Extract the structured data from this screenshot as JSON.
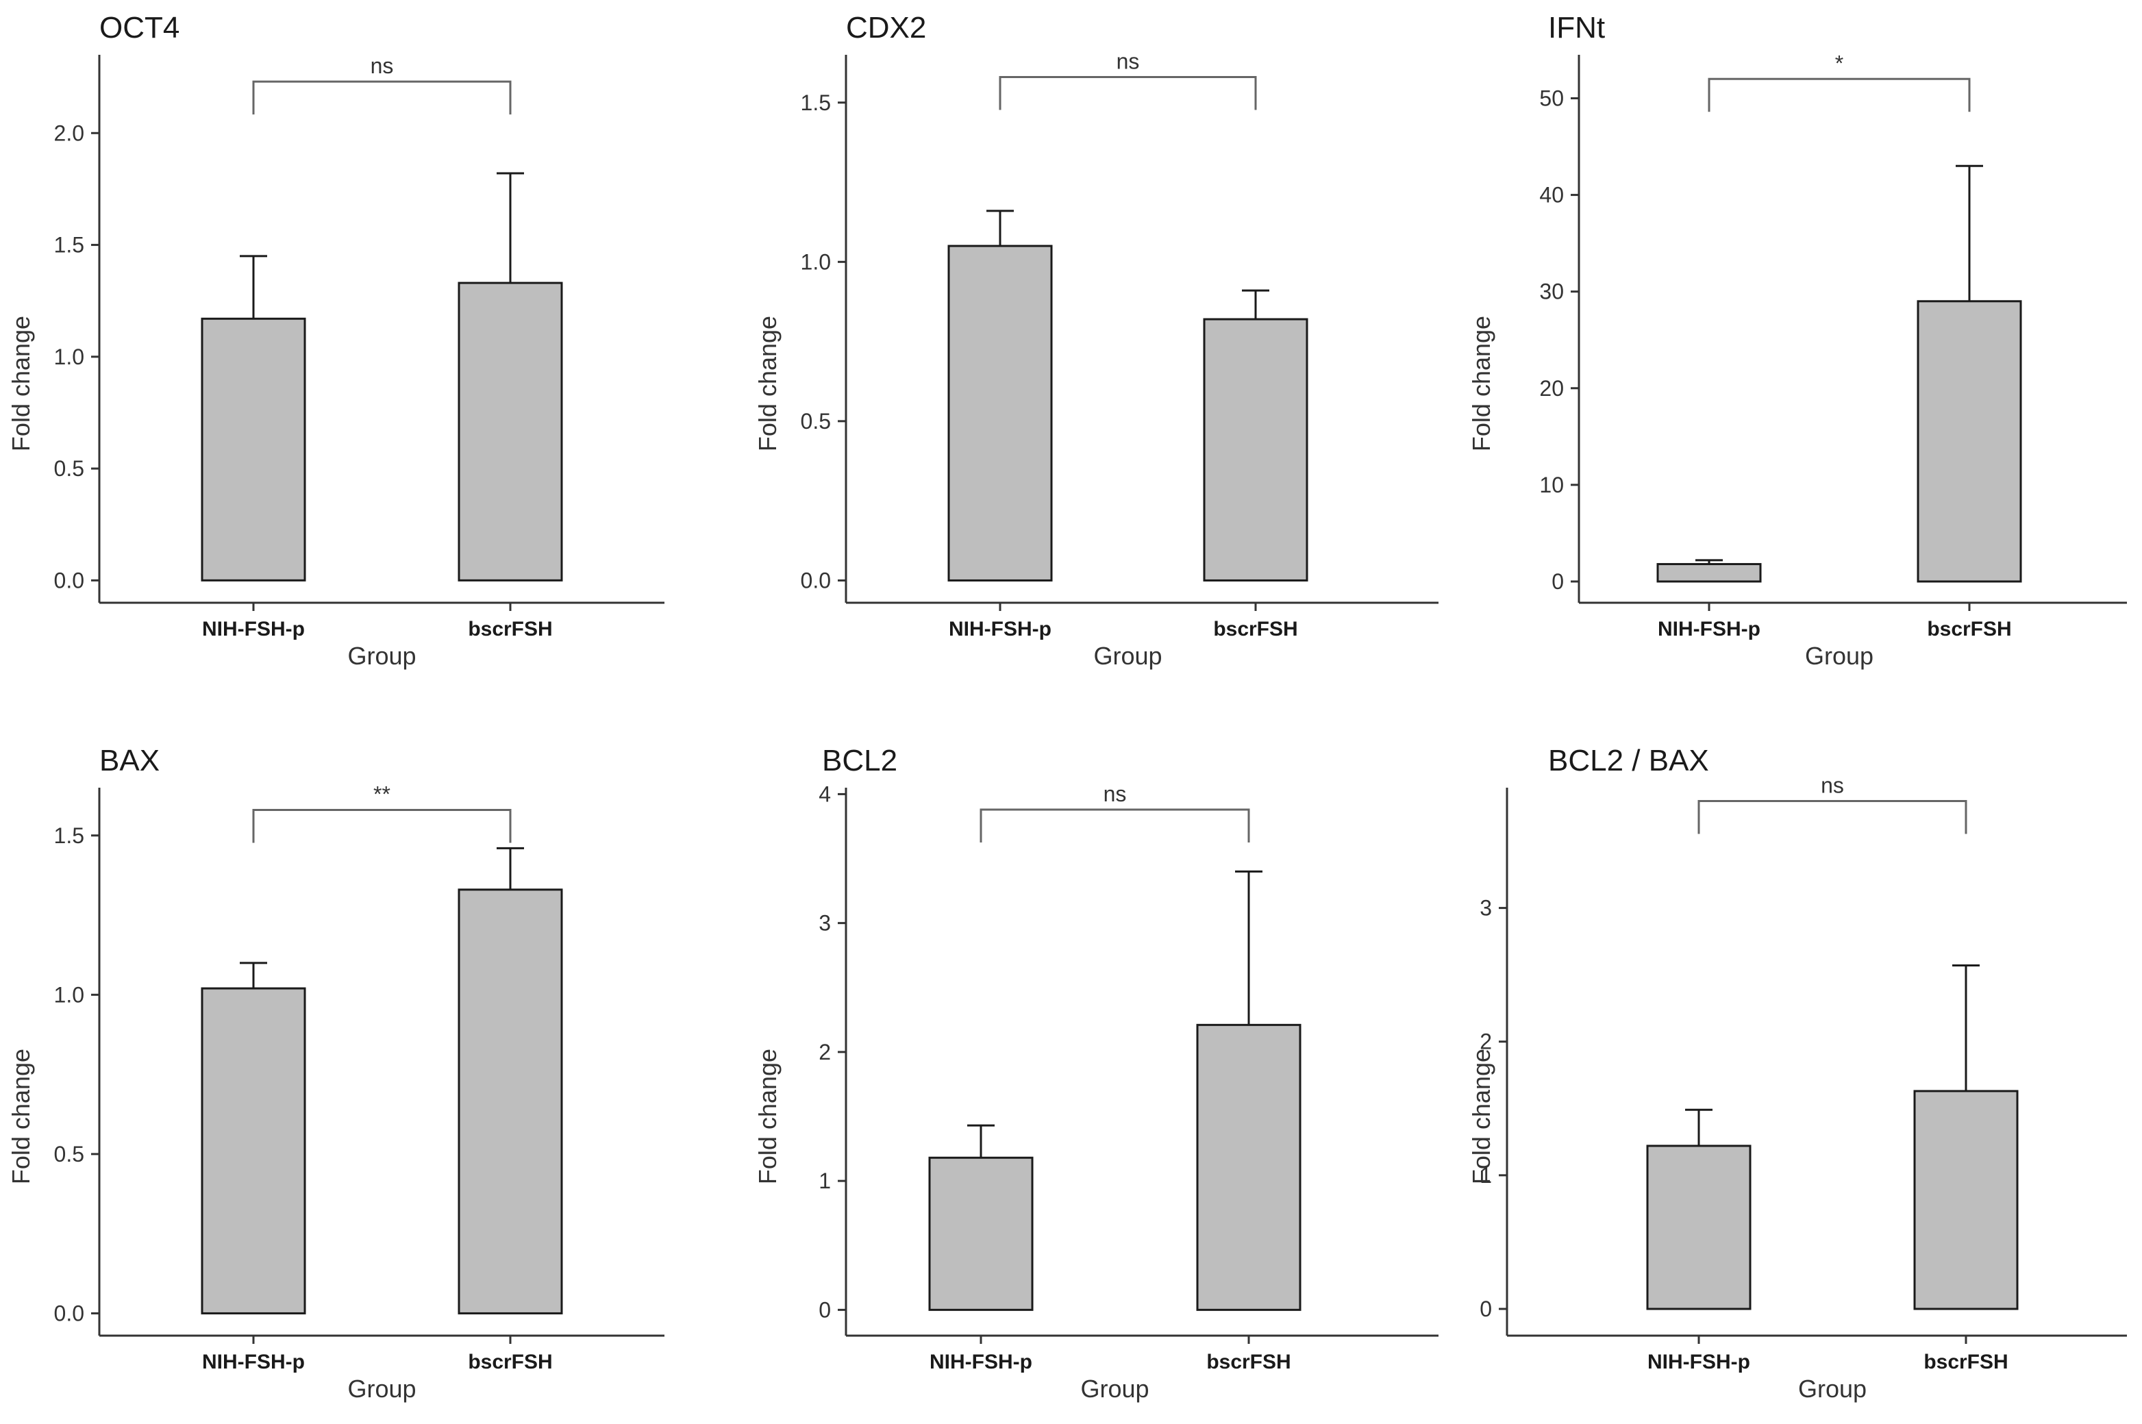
{
  "colors": {
    "bar_fill": "#bebebe",
    "bar_stroke": "#1a1a1a",
    "axis": "#333333",
    "bracket": "#666666"
  },
  "chart_data": [
    {
      "type": "bar",
      "title": "OCT4",
      "categories": [
        "NIH-FSH-p",
        "bscrFSH"
      ],
      "values": [
        1.17,
        1.33
      ],
      "errors": [
        0.28,
        0.49
      ],
      "xlabel": "Group",
      "ylabel": "Fold change",
      "ylim": [
        -0.1,
        2.35
      ],
      "yticks": [
        "0.0",
        "0.5",
        "1.0",
        "1.5",
        "2.0"
      ],
      "significance": "ns",
      "bracket_y": 2.23,
      "grid": false
    },
    {
      "type": "bar",
      "title": "CDX2",
      "categories": [
        "NIH-FSH-p",
        "bscrFSH"
      ],
      "values": [
        1.05,
        0.82
      ],
      "errors": [
        0.11,
        0.09
      ],
      "xlabel": "Group",
      "ylabel": "Fold change",
      "ylim": [
        -0.07,
        1.65
      ],
      "yticks": [
        "0.0",
        "0.5",
        "1.0",
        "1.5"
      ],
      "significance": "ns",
      "bracket_y": 1.58,
      "grid": false
    },
    {
      "type": "bar",
      "title": "IFNt",
      "categories": [
        "NIH-FSH-p",
        "bscrFSH"
      ],
      "values": [
        1.8,
        29.0
      ],
      "errors": [
        0.4,
        14.0
      ],
      "xlabel": "Group",
      "ylabel": "Fold change",
      "ylim": [
        -2.2,
        54.5
      ],
      "yticks": [
        "0",
        "10",
        "20",
        "30",
        "40",
        "50"
      ],
      "significance": "*",
      "bracket_y": 52,
      "grid": false
    },
    {
      "type": "bar",
      "title": "BAX",
      "categories": [
        "NIH-FSH-p",
        "bscrFSH"
      ],
      "values": [
        1.02,
        1.33
      ],
      "errors": [
        0.08,
        0.13
      ],
      "xlabel": "Group",
      "ylabel": "Fold change",
      "ylim": [
        -0.07,
        1.65
      ],
      "yticks": [
        "0.0",
        "0.5",
        "1.0",
        "1.5"
      ],
      "significance": "**",
      "bracket_y": 1.58,
      "grid": false
    },
    {
      "type": "bar",
      "title": "BCL2",
      "categories": [
        "NIH-FSH-p",
        "bscrFSH"
      ],
      "values": [
        1.18,
        2.21
      ],
      "errors": [
        0.25,
        1.19
      ],
      "xlabel": "Group",
      "ylabel": "Fold change",
      "ylim": [
        -0.2,
        4.05
      ],
      "yticks": [
        "0",
        "1",
        "2",
        "3",
        "4"
      ],
      "significance": "ns",
      "bracket_y": 3.88,
      "grid": false
    },
    {
      "type": "bar",
      "title": "BCL2 / BAX",
      "categories": [
        "NIH-FSH-p",
        "bscrFSH"
      ],
      "values": [
        1.22,
        1.63
      ],
      "errors": [
        0.27,
        0.94
      ],
      "xlabel": "Group",
      "ylabel": "Fold change",
      "ylim": [
        -0.2,
        3.9
      ],
      "yticks": [
        "0",
        "1",
        "2",
        "3"
      ],
      "significance": "ns",
      "bracket_y": 3.8,
      "grid": false
    }
  ]
}
